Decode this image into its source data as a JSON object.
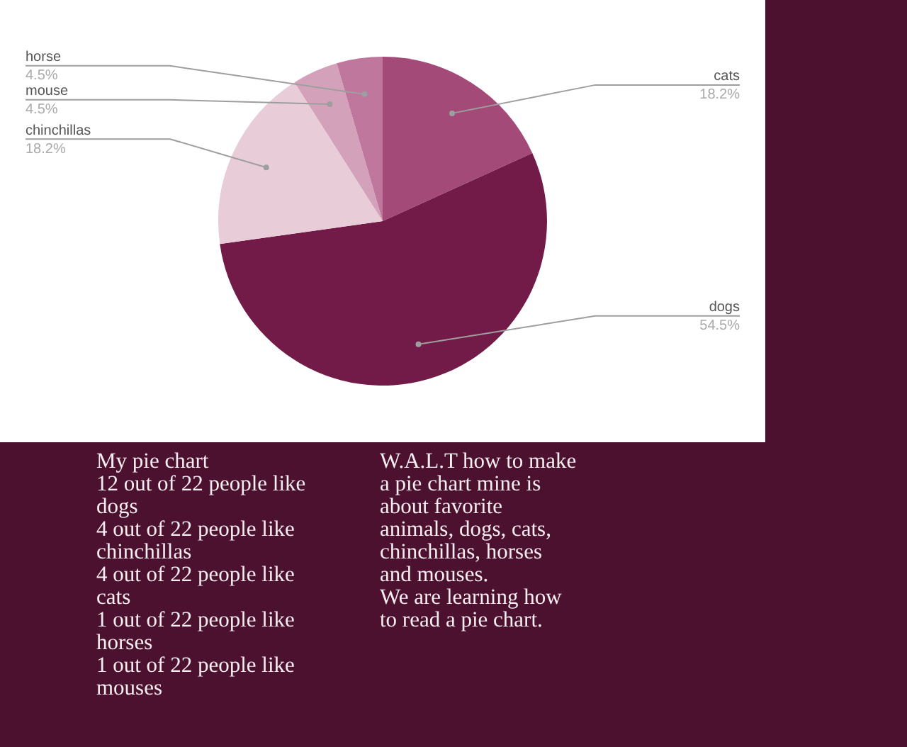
{
  "chart_data": {
    "type": "pie",
    "categories": [
      "cats",
      "dogs",
      "chinchillas",
      "mouse",
      "horse"
    ],
    "values": [
      18.2,
      54.5,
      18.2,
      4.5,
      4.5
    ],
    "colors": [
      "#a34a79",
      "#731b48",
      "#e8cdd9",
      "#d4a1bb",
      "#bf779d"
    ],
    "value_labels": [
      "18.2%",
      "54.5%",
      "18.2%",
      "4.5%",
      "4.5%"
    ],
    "legend": false,
    "annotations": [
      "My pie chart\n 12 out of 22 people like dogs\n4 out of 22 people like chinchillas\n4 out of 22 people like cats\n1 out of 22 people like horses\n1 out of 22 people like mouses",
      "W.A.L.T how to make a pie chart mine is about favorite animals, dogs, cats, chinchillas, horses and mouses.\nWe are learning how to read a pie chart."
    ]
  }
}
